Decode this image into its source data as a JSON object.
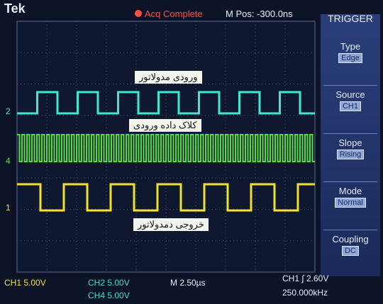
{
  "header": {
    "brand": "Tek",
    "status": "Acq Complete",
    "position": "M Pos: -300.0ns"
  },
  "menu": {
    "title": "TRIGGER",
    "items": [
      {
        "label": "Type",
        "value": "Edge"
      },
      {
        "label": "Source",
        "value": "CH1"
      },
      {
        "label": "Slope",
        "value": "Rising"
      },
      {
        "label": "Mode",
        "value": "Normal"
      },
      {
        "label": "Coupling",
        "value": "DC"
      }
    ]
  },
  "traces": [
    {
      "marker": "2",
      "label": "ورودی مدولاتور"
    },
    {
      "marker": "4",
      "label": "کلاک داده ورودی"
    },
    {
      "marker": "1",
      "label": "خروجی دمدولاتور"
    }
  ],
  "footer": {
    "ch1": "CH1 5.00V",
    "ch2": "CH2 5.00V",
    "ch4": "CH4 5.00V",
    "timebase": "M 2.50µs",
    "trigger": "CH1 ∫ 2.60V",
    "frequency": "250.000kHz"
  }
}
